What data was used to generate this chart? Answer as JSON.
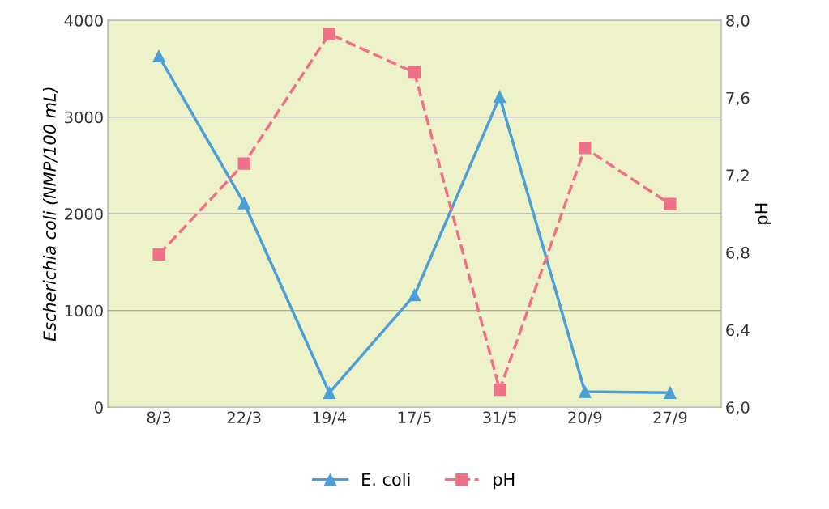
{
  "chart_data": {
    "type": "line",
    "categories": [
      "8/3",
      "22/3",
      "19/4",
      "17/5",
      "31/5",
      "20/9",
      "27/9"
    ],
    "ylabel": "Escherichia coli (NMP/100 mL)",
    "y2label": "pH",
    "ylim": [
      0,
      4000
    ],
    "yticks": [
      0,
      1000,
      2000,
      3000,
      4000
    ],
    "y2lim": [
      6.0,
      8.0
    ],
    "y2ticks": [
      {
        "value": 6.0,
        "label": "6,0"
      },
      {
        "value": 6.4,
        "label": "6,4"
      },
      {
        "value": 6.8,
        "label": "6,8"
      },
      {
        "value": 7.2,
        "label": "7,2"
      },
      {
        "value": 7.6,
        "label": "7,6"
      },
      {
        "value": 8.0,
        "label": "8,0"
      }
    ],
    "grid": "y",
    "legend": "bottom",
    "series": [
      {
        "name": "E. coli",
        "color": "#4a9fd8",
        "marker": "triangle",
        "line_style": "solid",
        "values": [
          3630,
          2110,
          150,
          1160,
          3210,
          160,
          150
        ]
      },
      {
        "name": "pH",
        "color": "#f07088",
        "marker": "square",
        "line_style": "dashed",
        "axis": "y2",
        "values": [
          6.79,
          7.26,
          7.93,
          7.73,
          6.09,
          7.34,
          7.05
        ]
      }
    ]
  }
}
